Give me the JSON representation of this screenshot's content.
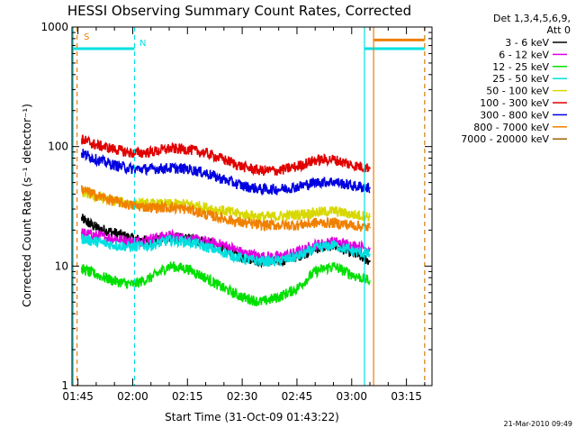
{
  "chart_data": {
    "type": "line",
    "title": "HESSI Observing Summary Count Rates, Corrected",
    "xlabel": "Start Time (31-Oct-09 01:43:22)",
    "ylabel": "Corrected Count Rate (s⁻¹ detector⁻¹)",
    "y_scale": "log",
    "ylim": [
      1,
      1000
    ],
    "xlim": [
      "01:43:22",
      "03:22:00"
    ],
    "x_ticks": [
      "01:45",
      "02:00",
      "02:15",
      "02:30",
      "02:45",
      "03:00",
      "03:15"
    ],
    "y_ticks": [
      "1",
      "10",
      "100",
      "1000"
    ],
    "grid": false,
    "legend_position": "right",
    "legend_header": [
      "Det 1,3,4,5,6,9,",
      "Att 0"
    ],
    "timestamp": "21-Mar-2010 09:49",
    "annotations": {
      "saa_label": "S",
      "night_label": "N"
    },
    "series": [
      {
        "name": "3 - 6 keV",
        "color": "#000000",
        "times": [
          "01:46",
          "01:50",
          "01:55",
          "02:00",
          "02:05",
          "02:10",
          "02:15",
          "02:20",
          "02:25",
          "02:30",
          "02:35",
          "02:40",
          "02:45",
          "02:50",
          "02:55",
          "03:00",
          "03:05"
        ],
        "values": [
          25,
          21,
          19,
          17,
          16,
          17,
          17,
          16,
          14,
          12,
          11,
          11,
          12,
          14,
          15,
          13,
          11
        ]
      },
      {
        "name": "6 - 12 keV",
        "color": "#e000e0",
        "times": [
          "01:46",
          "01:50",
          "01:55",
          "02:00",
          "02:05",
          "02:10",
          "02:15",
          "02:20",
          "02:25",
          "02:30",
          "02:35",
          "02:40",
          "02:45",
          "02:50",
          "02:55",
          "03:00",
          "03:05"
        ],
        "values": [
          19,
          18,
          17,
          16,
          17,
          18,
          17,
          16,
          15,
          13,
          12,
          12,
          13,
          15,
          16,
          15,
          14
        ]
      },
      {
        "name": "12 - 25 keV",
        "color": "#00e000",
        "times": [
          "01:46",
          "01:50",
          "01:55",
          "02:00",
          "02:05",
          "02:10",
          "02:15",
          "02:20",
          "02:25",
          "02:30",
          "02:35",
          "02:40",
          "02:45",
          "02:50",
          "02:55",
          "03:00",
          "03:05"
        ],
        "values": [
          9.5,
          8.5,
          7.5,
          7,
          8,
          10,
          9.5,
          8,
          6.5,
          5.5,
          5,
          5.5,
          6.5,
          9,
          10,
          8.5,
          7.5
        ]
      },
      {
        "name": "25 - 50 keV",
        "color": "#00e0e0",
        "times": [
          "01:46",
          "01:50",
          "01:55",
          "02:00",
          "02:05",
          "02:10",
          "02:15",
          "02:20",
          "02:25",
          "02:30",
          "02:35",
          "02:40",
          "02:45",
          "02:50",
          "02:55",
          "03:00",
          "03:05"
        ],
        "values": [
          17,
          16,
          15,
          14.5,
          15,
          16.5,
          16,
          14.5,
          13,
          11.5,
          11,
          11,
          12,
          14,
          15,
          13.5,
          12.5
        ]
      },
      {
        "name": "50 - 100 keV",
        "color": "#d8d800",
        "times": [
          "01:46",
          "01:50",
          "01:55",
          "02:00",
          "02:05",
          "02:10",
          "02:15",
          "02:20",
          "02:25",
          "02:30",
          "02:35",
          "02:40",
          "02:45",
          "02:50",
          "02:55",
          "03:00",
          "03:05"
        ],
        "values": [
          42,
          38,
          35,
          33,
          33,
          33,
          33,
          31,
          29,
          27,
          26,
          26,
          27,
          28,
          29,
          27,
          26
        ]
      },
      {
        "name": "100 - 300 keV",
        "color": "#e00000",
        "times": [
          "01:46",
          "01:50",
          "01:55",
          "02:00",
          "02:05",
          "02:10",
          "02:15",
          "02:20",
          "02:25",
          "02:30",
          "02:35",
          "02:40",
          "02:45",
          "02:50",
          "02:55",
          "03:00",
          "03:05"
        ],
        "values": [
          115,
          103,
          95,
          88,
          90,
          96,
          95,
          88,
          78,
          68,
          63,
          63,
          68,
          77,
          78,
          70,
          66
        ]
      },
      {
        "name": "300 - 800 keV",
        "color": "#0000e0",
        "times": [
          "01:46",
          "01:50",
          "01:55",
          "02:00",
          "02:05",
          "02:10",
          "02:15",
          "02:20",
          "02:25",
          "02:30",
          "02:35",
          "02:40",
          "02:45",
          "02:50",
          "02:55",
          "03:00",
          "03:05"
        ],
        "values": [
          88,
          78,
          70,
          65,
          65,
          66,
          65,
          60,
          53,
          47,
          44,
          44,
          46,
          50,
          51,
          47,
          45
        ]
      },
      {
        "name": "800 - 7000 keV",
        "color": "#f08000",
        "times": [
          "01:46",
          "01:50",
          "01:55",
          "02:00",
          "02:05",
          "02:10",
          "02:15",
          "02:20",
          "02:25",
          "02:30",
          "02:35",
          "02:40",
          "02:45",
          "02:50",
          "02:55",
          "03:00",
          "03:05"
        ],
        "values": [
          44,
          39,
          35,
          32,
          31,
          31,
          30,
          27,
          25,
          23,
          22,
          22,
          22,
          23,
          23,
          22,
          21
        ]
      },
      {
        "name": "7000 - 20000 keV",
        "color": "#a06000",
        "times": [],
        "values": []
      }
    ],
    "flag_bars": [
      {
        "label": "S",
        "color": "#f08000",
        "start": "03:06",
        "end": "03:20",
        "value": 780
      },
      {
        "label": "N",
        "color": "#00e0e0",
        "start": "01:43:22",
        "end": "02:00:30",
        "value": 660
      },
      {
        "label": "N",
        "color": "#00e0e0",
        "start": "03:03:30",
        "end": "03:20",
        "value": 660
      }
    ],
    "vertical_markers": [
      {
        "time": "01:43:40",
        "color": "#00e0e0",
        "style": "solid"
      },
      {
        "time": "01:44:45",
        "color": "#f08000",
        "style": "dashed"
      },
      {
        "time": "02:00:30",
        "color": "#00e0e0",
        "style": "dashed"
      },
      {
        "time": "03:03:30",
        "color": "#00e0e0",
        "style": "solid"
      },
      {
        "time": "03:06:00",
        "color": "#f08000",
        "style": "solid"
      },
      {
        "time": "03:20:00",
        "color": "#00e0e0",
        "style": "dashed"
      },
      {
        "time": "03:20:00",
        "color": "#f08000",
        "style": "dashed"
      }
    ]
  }
}
